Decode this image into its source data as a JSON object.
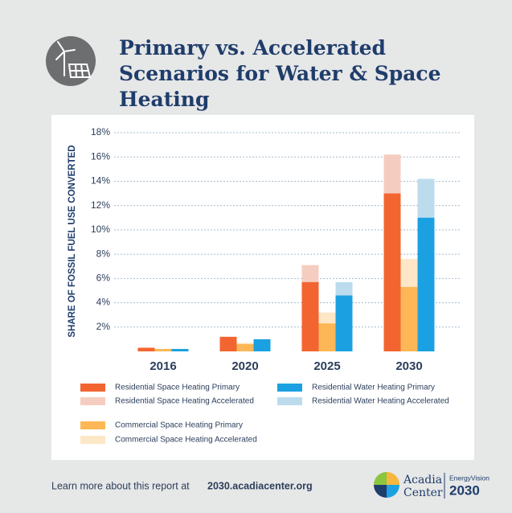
{
  "chart_data": {
    "type": "bar",
    "title": "Primary vs. Accelerated Scenarios for Water & Space Heating",
    "y_label": "SHARE OF FOSSIL FUEL USE CONVERTED",
    "categories": [
      "2016",
      "2020",
      "2025",
      "2030"
    ],
    "series": [
      {
        "name": "Residential Space Heating Primary",
        "color": "#f26531",
        "values": [
          0.3,
          1.2,
          5.7,
          13.0
        ]
      },
      {
        "name": "Residential Space Heating Accelerated",
        "color": "#f5cdc0",
        "values": [
          0.3,
          1.2,
          7.1,
          16.2
        ]
      },
      {
        "name": "Commercial Space Heating Primary",
        "color": "#fdb756",
        "values": [
          0.2,
          0.6,
          2.3,
          5.3
        ]
      },
      {
        "name": "Commercial Space Heating Accelerated",
        "color": "#fde7c6",
        "values": [
          0.2,
          0.7,
          3.2,
          7.6
        ]
      },
      {
        "name": "Residential Water Heating Primary",
        "color": "#1ba1e2",
        "values": [
          0.2,
          1.0,
          4.6,
          11.0
        ]
      },
      {
        "name": "Residential Water Heating Accelerated",
        "color": "#bcdcee",
        "values": [
          0.2,
          1.0,
          5.7,
          14.2
        ]
      }
    ],
    "ylim": [
      0,
      18
    ],
    "yticks": [
      {
        "value": 2,
        "label": "2%"
      },
      {
        "value": 4,
        "label": "4%"
      },
      {
        "value": 6,
        "label": "6%"
      },
      {
        "value": 8,
        "label": "8%"
      },
      {
        "value": 10,
        "label": "10%"
      },
      {
        "value": 12,
        "label": "12%"
      },
      {
        "value": 14,
        "label": "14%"
      },
      {
        "value": 16,
        "label": "16%"
      },
      {
        "value": 18,
        "label": "18%"
      }
    ],
    "grid": true
  },
  "footer": {
    "text": "Learn more about this report at",
    "link": "2030.acadiacenter.org"
  },
  "logo": {
    "org_line1": "Acadia",
    "org_line2": "Center",
    "product": "EnergyVision",
    "year": "2030"
  }
}
